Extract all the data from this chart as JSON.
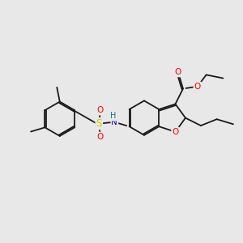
{
  "bg_color": "#e8e8e8",
  "bond_color": "#1a1a1a",
  "bond_width": 1.3,
  "dbo": 0.055,
  "figsize": [
    3.0,
    3.0
  ],
  "dpi": 100,
  "atom_colors": {
    "O": "#ff0000",
    "N": "#0000cc",
    "S": "#cccc00",
    "H": "#008080",
    "C": "#1a1a1a"
  }
}
